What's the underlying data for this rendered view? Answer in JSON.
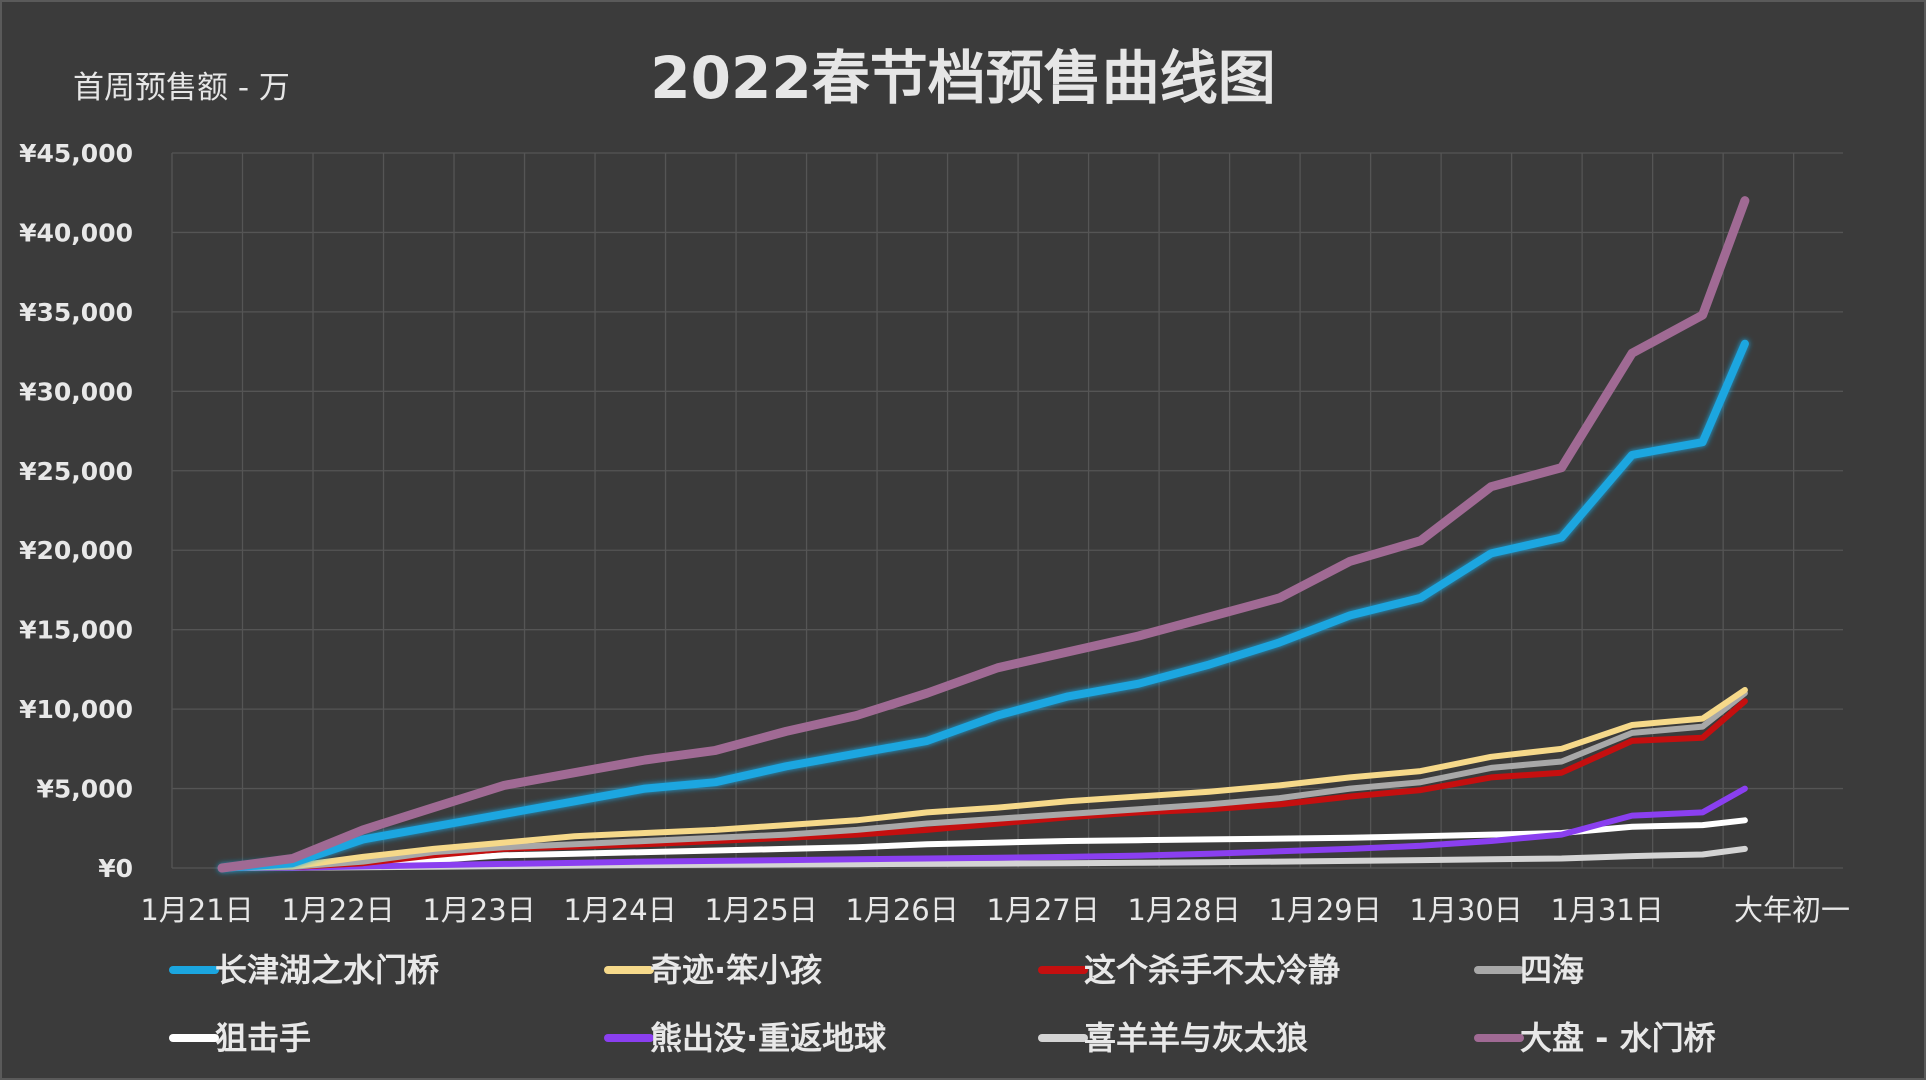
{
  "chart_data": {
    "type": "line",
    "title": "2022春节档预售曲线图",
    "ylabel": "首周预售额 - 万",
    "xlabel": "",
    "ylim": [
      0,
      45000
    ],
    "yticks": [
      "¥0",
      "¥5,000",
      "¥10,000",
      "¥15,000",
      "¥20,000",
      "¥25,000",
      "¥30,000",
      "¥35,000",
      "¥40,000",
      "¥45,000"
    ],
    "categories": [
      "1月21日",
      "1月22日",
      "1月23日",
      "1月24日",
      "1月25日",
      "1月26日",
      "1月27日",
      "1月28日",
      "1月29日",
      "1月30日",
      "1月31日",
      "大年初一"
    ],
    "grid": true,
    "legend_position": "bottom",
    "x": [
      0,
      0.5,
      1,
      1.5,
      2,
      2.5,
      3,
      3.5,
      4,
      4.5,
      5,
      5.5,
      6,
      6.5,
      7,
      7.5,
      8,
      8.5,
      9,
      9.5,
      10,
      10.5,
      10.8
    ],
    "series": [
      {
        "name": "长津湖之水门桥",
        "color": "#1ba6e0",
        "width": 8,
        "glow": true,
        "values": [
          0,
          300,
          1800,
          2600,
          3400,
          4200,
          5000,
          5400,
          6400,
          7200,
          8000,
          9600,
          10800,
          11600,
          12800,
          14200,
          15900,
          17000,
          19800,
          20800,
          26000,
          26800,
          33000
        ]
      },
      {
        "name": "奇迹·笨小孩",
        "color": "#f6d98a",
        "width": 6,
        "values": [
          0,
          100,
          700,
          1200,
          1600,
          2000,
          2200,
          2400,
          2700,
          3000,
          3500,
          3800,
          4200,
          4500,
          4800,
          5200,
          5700,
          6100,
          7000,
          7500,
          9000,
          9400,
          11200
        ]
      },
      {
        "name": "这个杀手不太冷静",
        "color": "#c50f0f",
        "width": 6,
        "values": [
          0,
          60,
          300,
          800,
          1200,
          1350,
          1500,
          1700,
          1900,
          2100,
          2400,
          2800,
          3200,
          3500,
          3700,
          4000,
          4500,
          4900,
          5700,
          6000,
          8000,
          8200,
          10500
        ]
      },
      {
        "name": "四海",
        "color": "#a8a8a8",
        "width": 6,
        "values": [
          0,
          80,
          400,
          1000,
          1300,
          1500,
          1700,
          1900,
          2100,
          2400,
          2800,
          3100,
          3400,
          3700,
          4000,
          4400,
          5000,
          5400,
          6300,
          6700,
          8500,
          8900,
          11000
        ]
      },
      {
        "name": "狙击手",
        "color": "#ffffff",
        "width": 6,
        "values": [
          0,
          40,
          200,
          500,
          800,
          900,
          1000,
          1100,
          1200,
          1300,
          1500,
          1600,
          1700,
          1750,
          1800,
          1850,
          1900,
          2000,
          2100,
          2200,
          2600,
          2700,
          3000
        ]
      },
      {
        "name": "熊出没·重返地球",
        "color": "#8a3ff0",
        "width": 6,
        "values": [
          0,
          20,
          100,
          180,
          260,
          320,
          400,
          450,
          500,
          550,
          600,
          650,
          700,
          780,
          900,
          1050,
          1200,
          1400,
          1700,
          2100,
          3300,
          3500,
          5000
        ]
      },
      {
        "name": "喜羊羊与灰太狼",
        "color": "#d4d4d4",
        "width": 6,
        "values": [
          0,
          10,
          50,
          80,
          120,
          150,
          180,
          200,
          220,
          240,
          260,
          280,
          300,
          330,
          360,
          400,
          450,
          500,
          550,
          600,
          750,
          850,
          1200
        ]
      },
      {
        "name": "大盘 - 水门桥",
        "color": "#a06a94",
        "width": 9,
        "glow": false,
        "values": [
          0,
          600,
          2400,
          3800,
          5200,
          6000,
          6800,
          7400,
          8600,
          9600,
          11000,
          12600,
          13600,
          14600,
          15800,
          17000,
          19300,
          20600,
          24000,
          25200,
          32400,
          34800,
          42000
        ]
      }
    ]
  }
}
